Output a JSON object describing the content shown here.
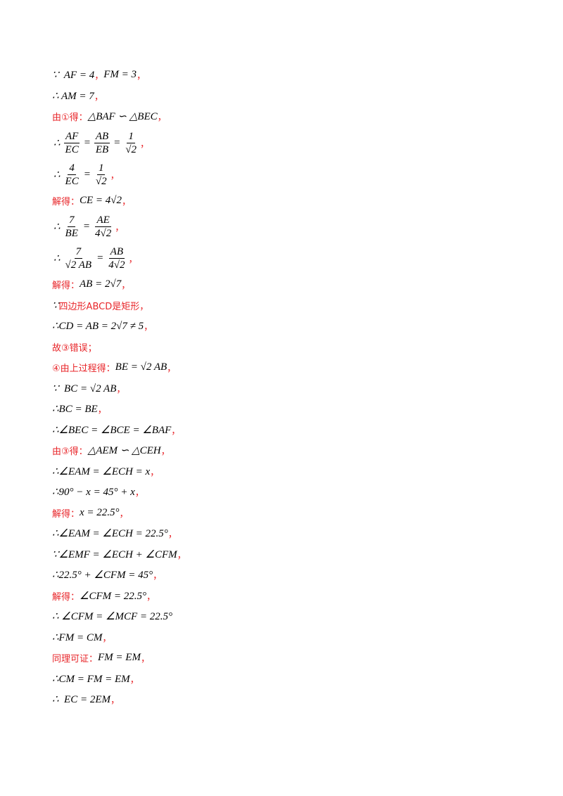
{
  "lines": [
    [
      "∵  AF = 4",
      {
        "red": "，"
      },
      "FM = 3",
      {
        "red": "，"
      }
    ],
    [
      "∴ AM = 7",
      {
        "red": "，"
      }
    ],
    [
      {
        "red": "由①得："
      },
      "△BAF ∽ △BEC",
      {
        "red": "，"
      }
    ],
    [
      "∴",
      {
        "num": "AF",
        "den": "EC"
      },
      "=",
      {
        "num": "AB",
        "den": "EB"
      },
      "=",
      {
        "num": "1",
        "den": "√2"
      },
      {
        "red": "，"
      }
    ],
    [
      "∴",
      {
        "num": "4",
        "den": "EC"
      },
      "=",
      {
        "num": "1",
        "den": "√2"
      },
      {
        "red": "，"
      }
    ],
    [
      {
        "red": "解得："
      },
      "CE = 4√2",
      {
        "red": "，"
      }
    ],
    [
      "∴",
      {
        "num": "7",
        "den": "BE"
      },
      "=",
      {
        "num": "AE",
        "den": "4√2"
      },
      {
        "red": "，"
      }
    ],
    [
      "∴",
      {
        "num": "7",
        "den": "√2 AB"
      },
      "=",
      {
        "num": "AB",
        "den": "4√2"
      },
      {
        "red": "，"
      }
    ],
    [
      {
        "red": "解得："
      },
      "AB = 2√7",
      {
        "red": "，"
      }
    ],
    [
      "∵",
      {
        "red": "四边形ABCD是矩形，"
      }
    ],
    [
      "∴CD = AB = 2√7 ≠ 5",
      {
        "red": "，"
      }
    ],
    [
      {
        "red": "故③错误；"
      }
    ],
    [
      {
        "red": "④由上过程得："
      },
      "BE = √2 AB",
      {
        "red": "，"
      }
    ],
    [
      "∵  BC = √2 AB",
      {
        "red": "，"
      }
    ],
    [
      "∴BC = BE",
      {
        "red": "，"
      }
    ],
    [
      "∴∠BEC = ∠BCE = ∠BAF",
      {
        "red": "，"
      }
    ],
    [
      {
        "red": "由③得："
      },
      "△AEM ∽ △CEH",
      {
        "red": "，"
      }
    ],
    [
      "∴∠EAM = ∠ECH = x",
      {
        "red": "，"
      }
    ],
    [
      "∴90° − x = 45° + x",
      {
        "red": "，"
      }
    ],
    [
      {
        "red": "解得："
      },
      "x = 22.5°",
      {
        "red": "，"
      }
    ],
    [
      "∴∠EAM = ∠ECH = 22.5°",
      {
        "red": "，"
      }
    ],
    [
      "∵∠EMF = ∠ECH + ∠CFM",
      {
        "red": "，"
      }
    ],
    [
      "∴22.5° + ∠CFM = 45°",
      {
        "red": "，"
      }
    ],
    [
      {
        "red": "解得："
      },
      "∠CFM = 22.5°",
      {
        "red": "，"
      }
    ],
    [
      "∴ ∠CFM = ∠MCF = 22.5°"
    ],
    [
      "∴FM = CM",
      {
        "red": "，"
      }
    ],
    [
      {
        "red": "同理可证："
      },
      "FM = EM",
      {
        "red": "，"
      }
    ],
    [
      "∴CM = FM = EM",
      {
        "red": "，"
      }
    ],
    [
      "∴  EC = 2EM",
      {
        "red": "，"
      }
    ]
  ]
}
